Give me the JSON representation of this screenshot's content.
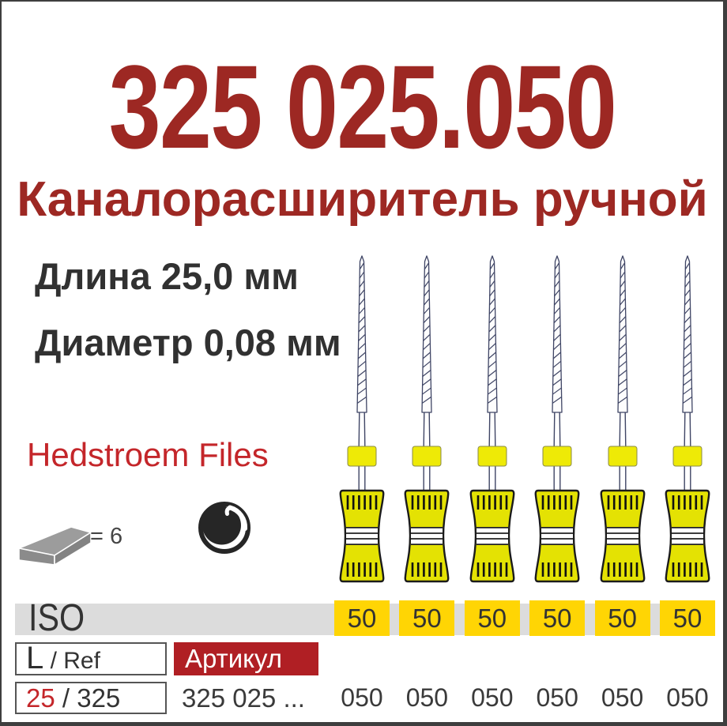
{
  "header": {
    "code": "325 025.050",
    "title": "Каналорасширитель ручной"
  },
  "specs": {
    "length": "Длина 25,0 мм",
    "diameter": "Диаметр 0,08 мм"
  },
  "brand": "Hedstroem Files",
  "packaging": {
    "quantity_label": "= 6"
  },
  "files": {
    "count": 6
  },
  "table": {
    "iso_label": "ISO",
    "iso_values": [
      "50",
      "50",
      "50",
      "50",
      "50",
      "50"
    ],
    "dimension_header": {
      "symbol": "L",
      "suffix": " / Ref"
    },
    "artikul_header": "Артикул",
    "dimension_value": {
      "highlight": "25",
      "suffix": " / 325"
    },
    "artikul_value": "325 025 ...",
    "ref_values": [
      "050",
      "050",
      "050",
      "050",
      "050",
      "050"
    ]
  },
  "colors": {
    "dark_red": "#9d2823",
    "bright_red": "#c4262a",
    "artikul_bg": "#b01f24",
    "iso_gray": "#dcdcdc",
    "cell_yellow": "#ffd504",
    "handle_yellow": "#e4e203",
    "stop_yellow": "#eeea06",
    "shaft_blue_gray": "#3f4565"
  }
}
